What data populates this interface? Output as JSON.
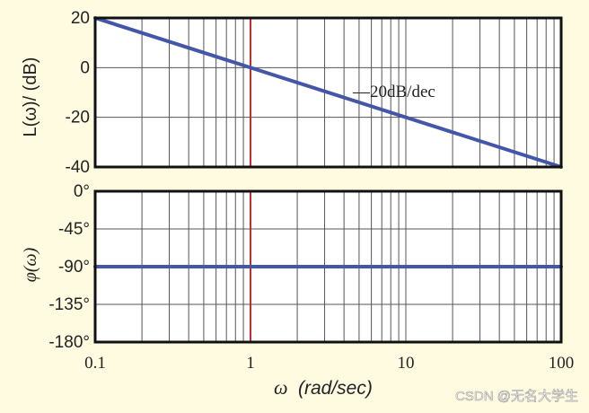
{
  "chart_data": [
    {
      "type": "line",
      "title": "",
      "xlabel_symbol": "ω",
      "xlabel_unit": "(rad/sec)",
      "ylabel": "L(ω)/ (dB)",
      "xscale": "log",
      "xlim": [
        0.1,
        100
      ],
      "ylim": [
        -40,
        20
      ],
      "xticks": [
        0.1,
        1,
        10,
        100
      ],
      "xtick_labels": [
        "0.1",
        "1",
        "10",
        "100"
      ],
      "yticks": [
        20,
        0,
        -20,
        -40
      ],
      "ytick_labels": [
        "20",
        "0",
        "-20",
        "-40"
      ],
      "grid": true,
      "series": [
        {
          "color": "#4456a8",
          "x": [
            0.1,
            100
          ],
          "y": [
            20,
            -40
          ]
        }
      ],
      "marker_line": {
        "x": 1,
        "color": "#cc2a2a"
      },
      "annotations": [
        {
          "text": "—20dB/dec",
          "x": 10,
          "y": -8
        }
      ]
    },
    {
      "type": "line",
      "title": "",
      "ylabel": "φ(ω)",
      "xscale": "log",
      "xlim": [
        0.1,
        100
      ],
      "ylim": [
        -180,
        0
      ],
      "yticks": [
        0,
        -45,
        -90,
        -135,
        -180
      ],
      "ytick_labels": [
        "0°",
        "-45°",
        "-90°",
        "-135°",
        "-180°"
      ],
      "grid": true,
      "series": [
        {
          "color": "#4456a8",
          "x": [
            0.1,
            100
          ],
          "y": [
            -90,
            -90
          ]
        }
      ],
      "marker_line": {
        "x": 1,
        "color": "#cc2a2a"
      }
    }
  ],
  "watermark": "CSDN @无名大学生",
  "colors": {
    "background": "#fffbe0",
    "plot_bg": "#ffffff",
    "grid": "#555555",
    "frame": "#111111"
  }
}
